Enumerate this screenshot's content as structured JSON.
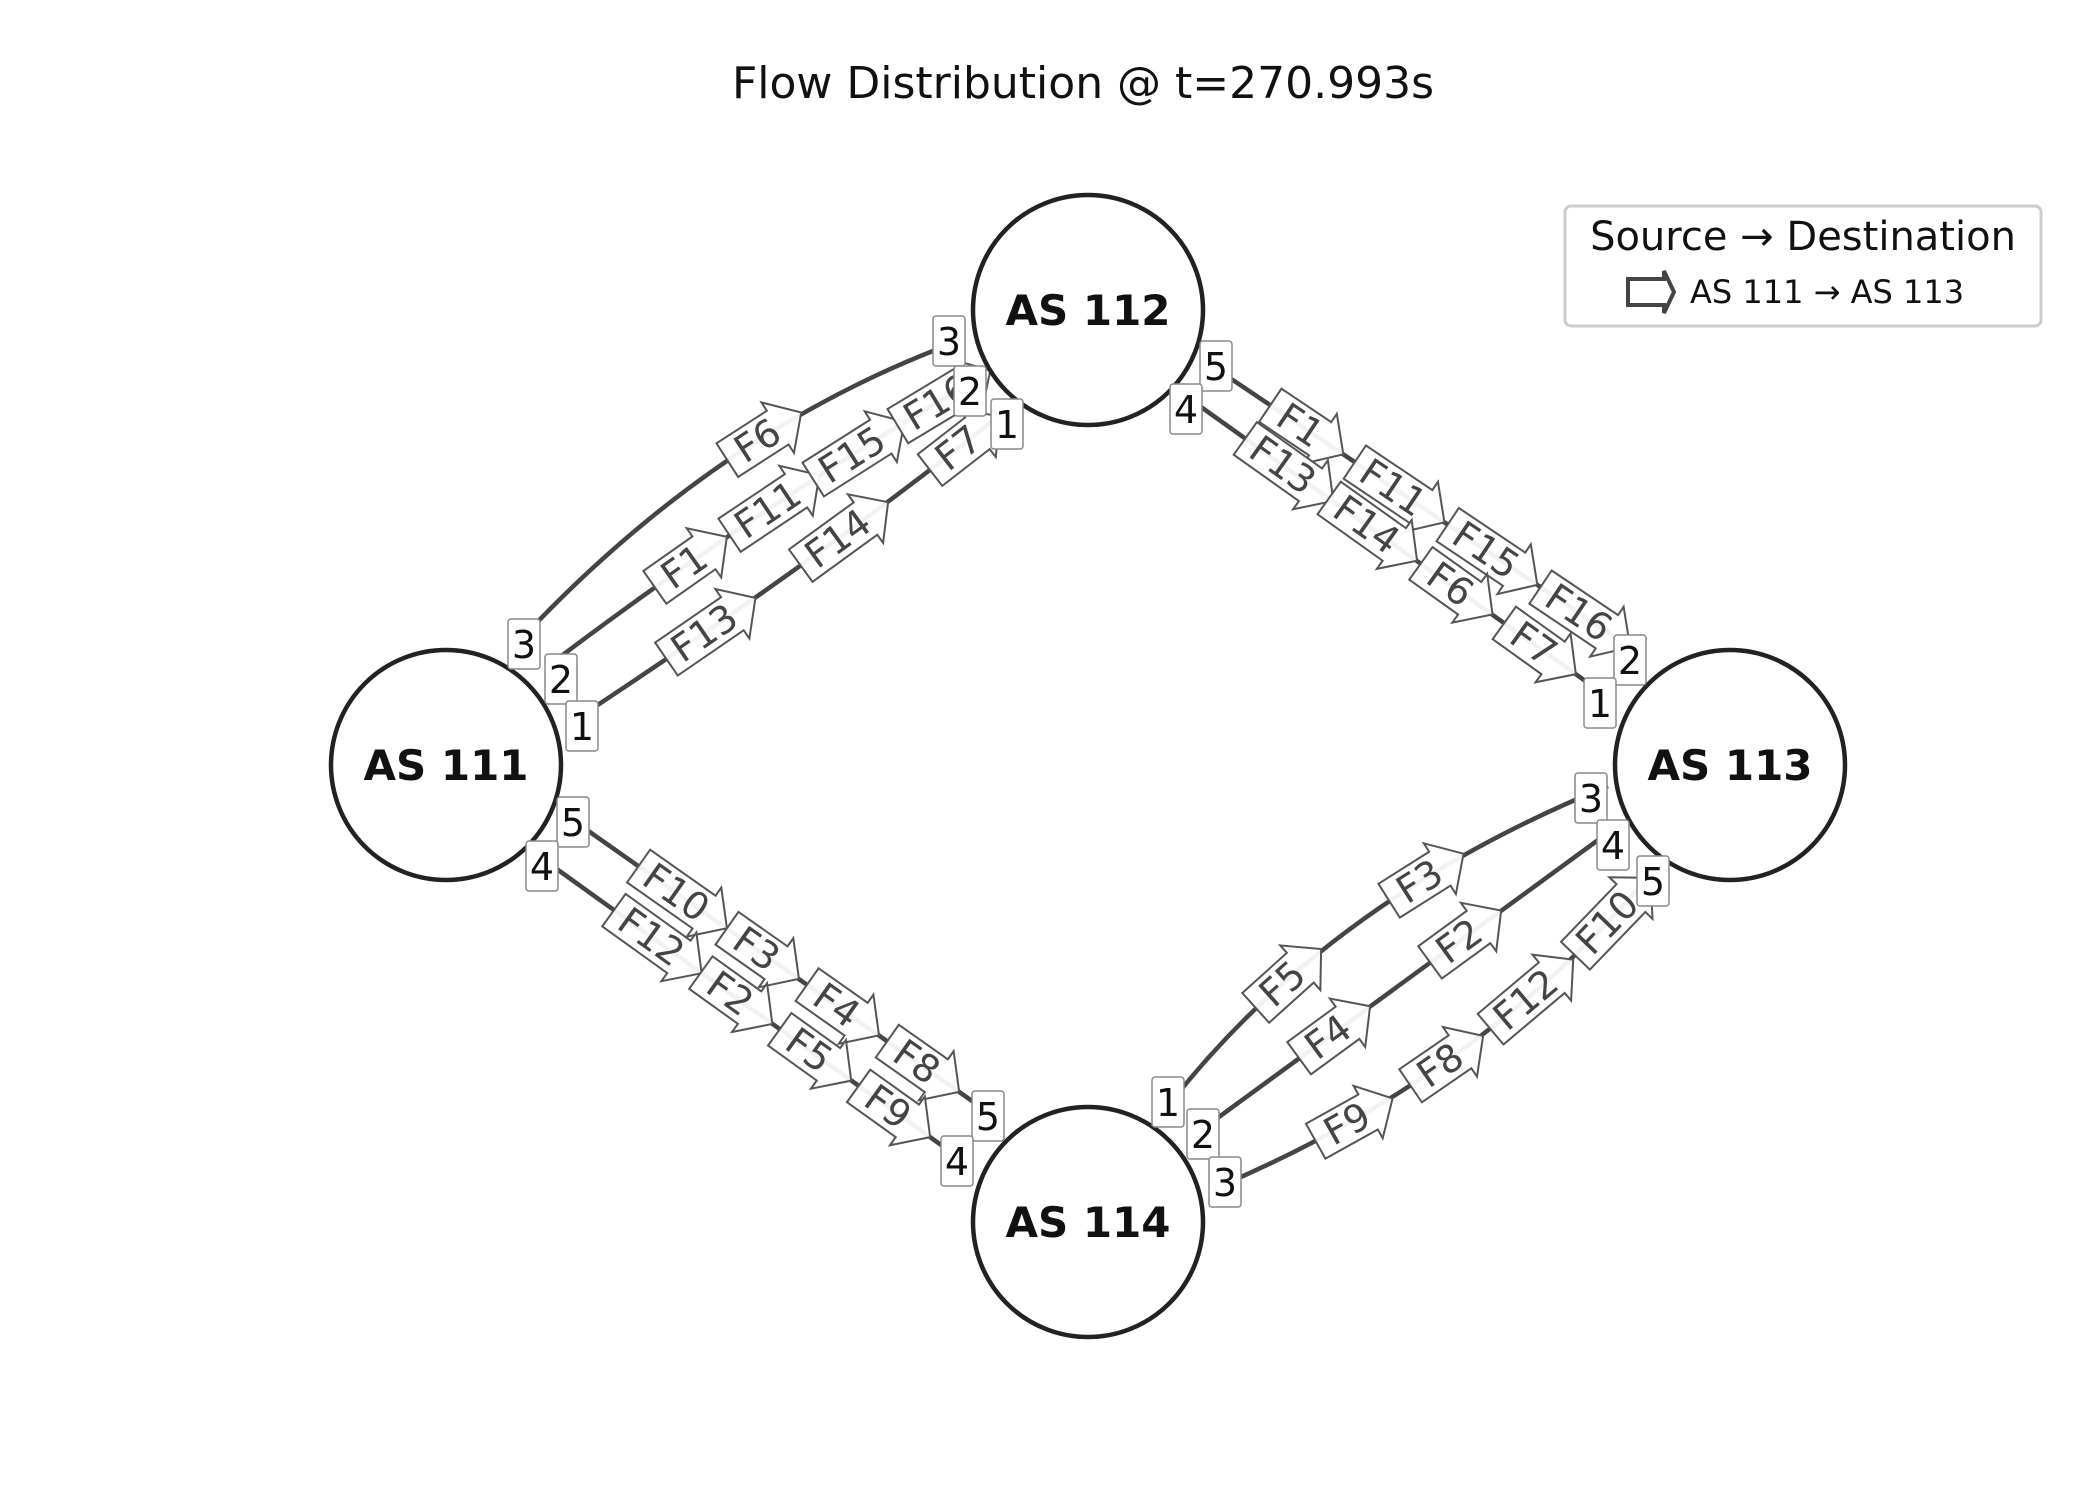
{
  "title": "Flow Distribution @ t=270.993s",
  "legend": {
    "title": "Source → Destination",
    "entry": "AS 111 → AS 113"
  },
  "nodes": [
    {
      "id": "as111",
      "label": "AS 111"
    },
    {
      "id": "as112",
      "label": "AS 112"
    },
    {
      "id": "as113",
      "label": "AS 113"
    },
    {
      "id": "as114",
      "label": "AS 114"
    }
  ],
  "links": [
    {
      "from": "as111",
      "to": "as112",
      "from_port": "3",
      "to_port": "3",
      "flows": [
        "F6"
      ]
    },
    {
      "from": "as111",
      "to": "as112",
      "from_port": "2",
      "to_port": "2",
      "flows": [
        "F1",
        "F11",
        "F15",
        "F16"
      ]
    },
    {
      "from": "as111",
      "to": "as112",
      "from_port": "1",
      "to_port": "1",
      "flows": [
        "F13",
        "F14",
        "F7"
      ]
    },
    {
      "from": "as112",
      "to": "as113",
      "from_port": "5",
      "to_port": "2",
      "flows": [
        "F1",
        "F11",
        "F15",
        "F16"
      ]
    },
    {
      "from": "as112",
      "to": "as113",
      "from_port": "4",
      "to_port": "1",
      "flows": [
        "F13",
        "F14",
        "F6",
        "F7"
      ]
    },
    {
      "from": "as111",
      "to": "as114",
      "from_port": "5",
      "to_port": "5",
      "flows": [
        "F10",
        "F3",
        "F4",
        "F8"
      ]
    },
    {
      "from": "as111",
      "to": "as114",
      "from_port": "4",
      "to_port": "4",
      "flows": [
        "F12",
        "F2",
        "F5",
        "F9"
      ]
    },
    {
      "from": "as114",
      "to": "as113",
      "from_port": "1",
      "to_port": "3",
      "flows": [
        "F5",
        "F3"
      ]
    },
    {
      "from": "as114",
      "to": "as113",
      "from_port": "2",
      "to_port": "4",
      "flows": [
        "F4",
        "F2"
      ]
    },
    {
      "from": "as114",
      "to": "as113",
      "from_port": "3",
      "to_port": "5",
      "flows": [
        "F9",
        "F8",
        "F12",
        "F10"
      ]
    }
  ]
}
